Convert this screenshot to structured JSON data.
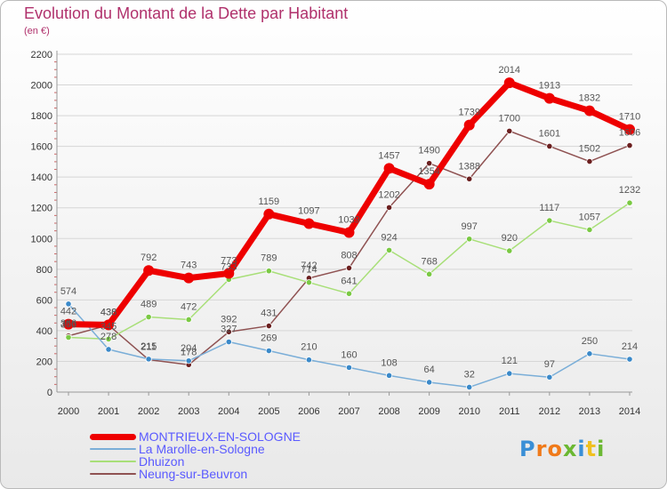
{
  "header": {
    "title": "Evolution du Montant de la Dette par Habitant",
    "subtitle": "(en €)"
  },
  "brand": {
    "letters": [
      "P",
      "r",
      "o",
      "x",
      "i",
      "t",
      "i"
    ],
    "colors": [
      "#3a8fd6",
      "#f07a1a",
      "#f07a1a",
      "#6bb832",
      "#3a8fd6",
      "#f0c020",
      "#6bb832"
    ]
  },
  "colors": {
    "title": "#b0316c",
    "axis": "#999999",
    "grid": "#d6d6d6",
    "legend_text": "#5a5aff"
  },
  "chart_data": {
    "type": "line",
    "title": "Evolution du Montant de la Dette par Habitant",
    "ylabel": "(en €)",
    "x": [
      2000,
      2001,
      2002,
      2003,
      2004,
      2005,
      2006,
      2007,
      2008,
      2009,
      2010,
      2011,
      2012,
      2013,
      2014
    ],
    "ylim": [
      0,
      2200
    ],
    "yticks": [
      0,
      200,
      400,
      600,
      800,
      1000,
      1200,
      1400,
      1600,
      1800,
      2000,
      2200
    ],
    "grid": true,
    "legend": "bottom-left",
    "series": [
      {
        "name": "MONTRIEUX-EN-SOLOGNE",
        "color": "#ee0000",
        "marker": "#ee0000",
        "values": [
          442,
          438,
          792,
          743,
          773,
          1159,
          1097,
          1039,
          1457,
          1354,
          1739,
          2014,
          1913,
          1832,
          1710
        ]
      },
      {
        "name": "La Marolle-en-Sologne",
        "color": "#7aaed8",
        "marker": "#3a89c9",
        "values": [
          574,
          278,
          215,
          204,
          327,
          269,
          210,
          160,
          108,
          64,
          32,
          121,
          97,
          250,
          214
        ]
      },
      {
        "name": "Dhuizon",
        "color": "#a8df78",
        "marker": "#7ac943",
        "values": [
          356,
          345,
          489,
          472,
          733,
          789,
          714,
          641,
          924,
          768,
          997,
          920,
          1117,
          1057,
          1232
        ]
      },
      {
        "name": "Neung-sur-Beuvron",
        "color": "#8f5252",
        "marker": "#6b1f1f",
        "values": [
          366,
          436,
          211,
          178,
          392,
          431,
          742,
          808,
          1202,
          1490,
          1388,
          1700,
          1601,
          1502,
          1606
        ]
      }
    ]
  }
}
